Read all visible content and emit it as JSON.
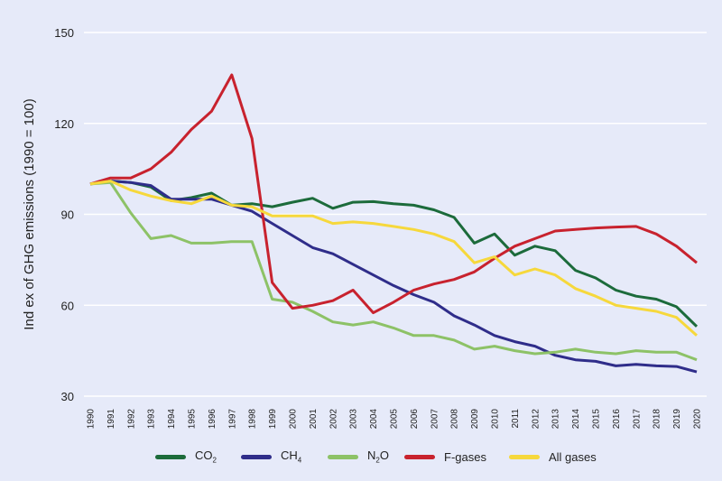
{
  "chart_data": {
    "type": "line",
    "ylabel": "Ind ex of GHG emissions  (1990 = 100)",
    "xlabel": "",
    "ylim": [
      30,
      150
    ],
    "yticks": [
      30,
      60,
      90,
      120,
      150
    ],
    "grid": "horizontal",
    "legend_position": "bottom",
    "x": [
      1990,
      1991,
      1992,
      1993,
      1994,
      1995,
      1996,
      1997,
      1998,
      1999,
      2000,
      2001,
      2002,
      2003,
      2004,
      2005,
      2006,
      2007,
      2008,
      2009,
      2010,
      2011,
      2012,
      2013,
      2014,
      2015,
      2016,
      2017,
      2018,
      2019,
      2020
    ],
    "series": [
      {
        "name": "CO2",
        "label_main": "CO",
        "label_sub": "2",
        "color": "#1c6b3b",
        "values": [
          100,
          101,
          100.5,
          99,
          94.5,
          95.5,
          97,
          93,
          93.5,
          92.5,
          94,
          95.3,
          92,
          94,
          94.2,
          93.5,
          93,
          91.5,
          89,
          80.5,
          83.5,
          76.5,
          79.5,
          78,
          71.5,
          69,
          65,
          63,
          62,
          59.5,
          53
        ]
      },
      {
        "name": "CH4",
        "label_main": "CH",
        "label_sub": "4",
        "color": "#2f2d8a",
        "values": [
          100,
          101,
          100.5,
          99.5,
          95,
          95,
          95,
          93,
          91,
          87,
          83,
          79,
          77,
          73.5,
          70,
          66.5,
          63.5,
          61,
          56.5,
          53.5,
          50,
          48,
          46.5,
          43.5,
          42,
          41.5,
          40,
          40.5,
          40,
          39.8,
          38
        ]
      },
      {
        "name": "N2O",
        "label_main": "N",
        "label_sub": "2",
        "label_tail": "O",
        "color": "#8dc267",
        "values": [
          100,
          100.5,
          90.5,
          82,
          83,
          80.5,
          80.5,
          81,
          81,
          62,
          61,
          58,
          54.5,
          53.5,
          54.5,
          52.5,
          50,
          50,
          48.5,
          45.5,
          46.5,
          45,
          44,
          44.5,
          45.5,
          44.5,
          44,
          45,
          44.5,
          44.5,
          42
        ]
      },
      {
        "name": "F-gases",
        "label_main": "F-gases",
        "color": "#c8222e",
        "values": [
          100,
          102,
          102,
          105,
          110.5,
          118,
          124,
          136,
          115,
          67.5,
          59,
          60,
          61.5,
          65,
          57.5,
          61,
          65,
          67,
          68.5,
          71,
          75.5,
          79.5,
          82,
          84.5,
          85,
          85.5,
          85.8,
          86,
          83.5,
          79.5,
          74
        ]
      },
      {
        "name": "All gases",
        "label_main": "All gases",
        "color": "#f6d83c",
        "values": [
          100,
          101,
          98,
          96,
          94.5,
          93.5,
          96,
          93,
          92.5,
          89.5,
          89.5,
          89.5,
          87,
          87.5,
          87,
          86,
          85,
          83.5,
          81,
          74,
          76,
          70,
          72,
          70,
          65.5,
          63,
          60,
          59,
          58,
          56,
          50
        ]
      }
    ]
  }
}
